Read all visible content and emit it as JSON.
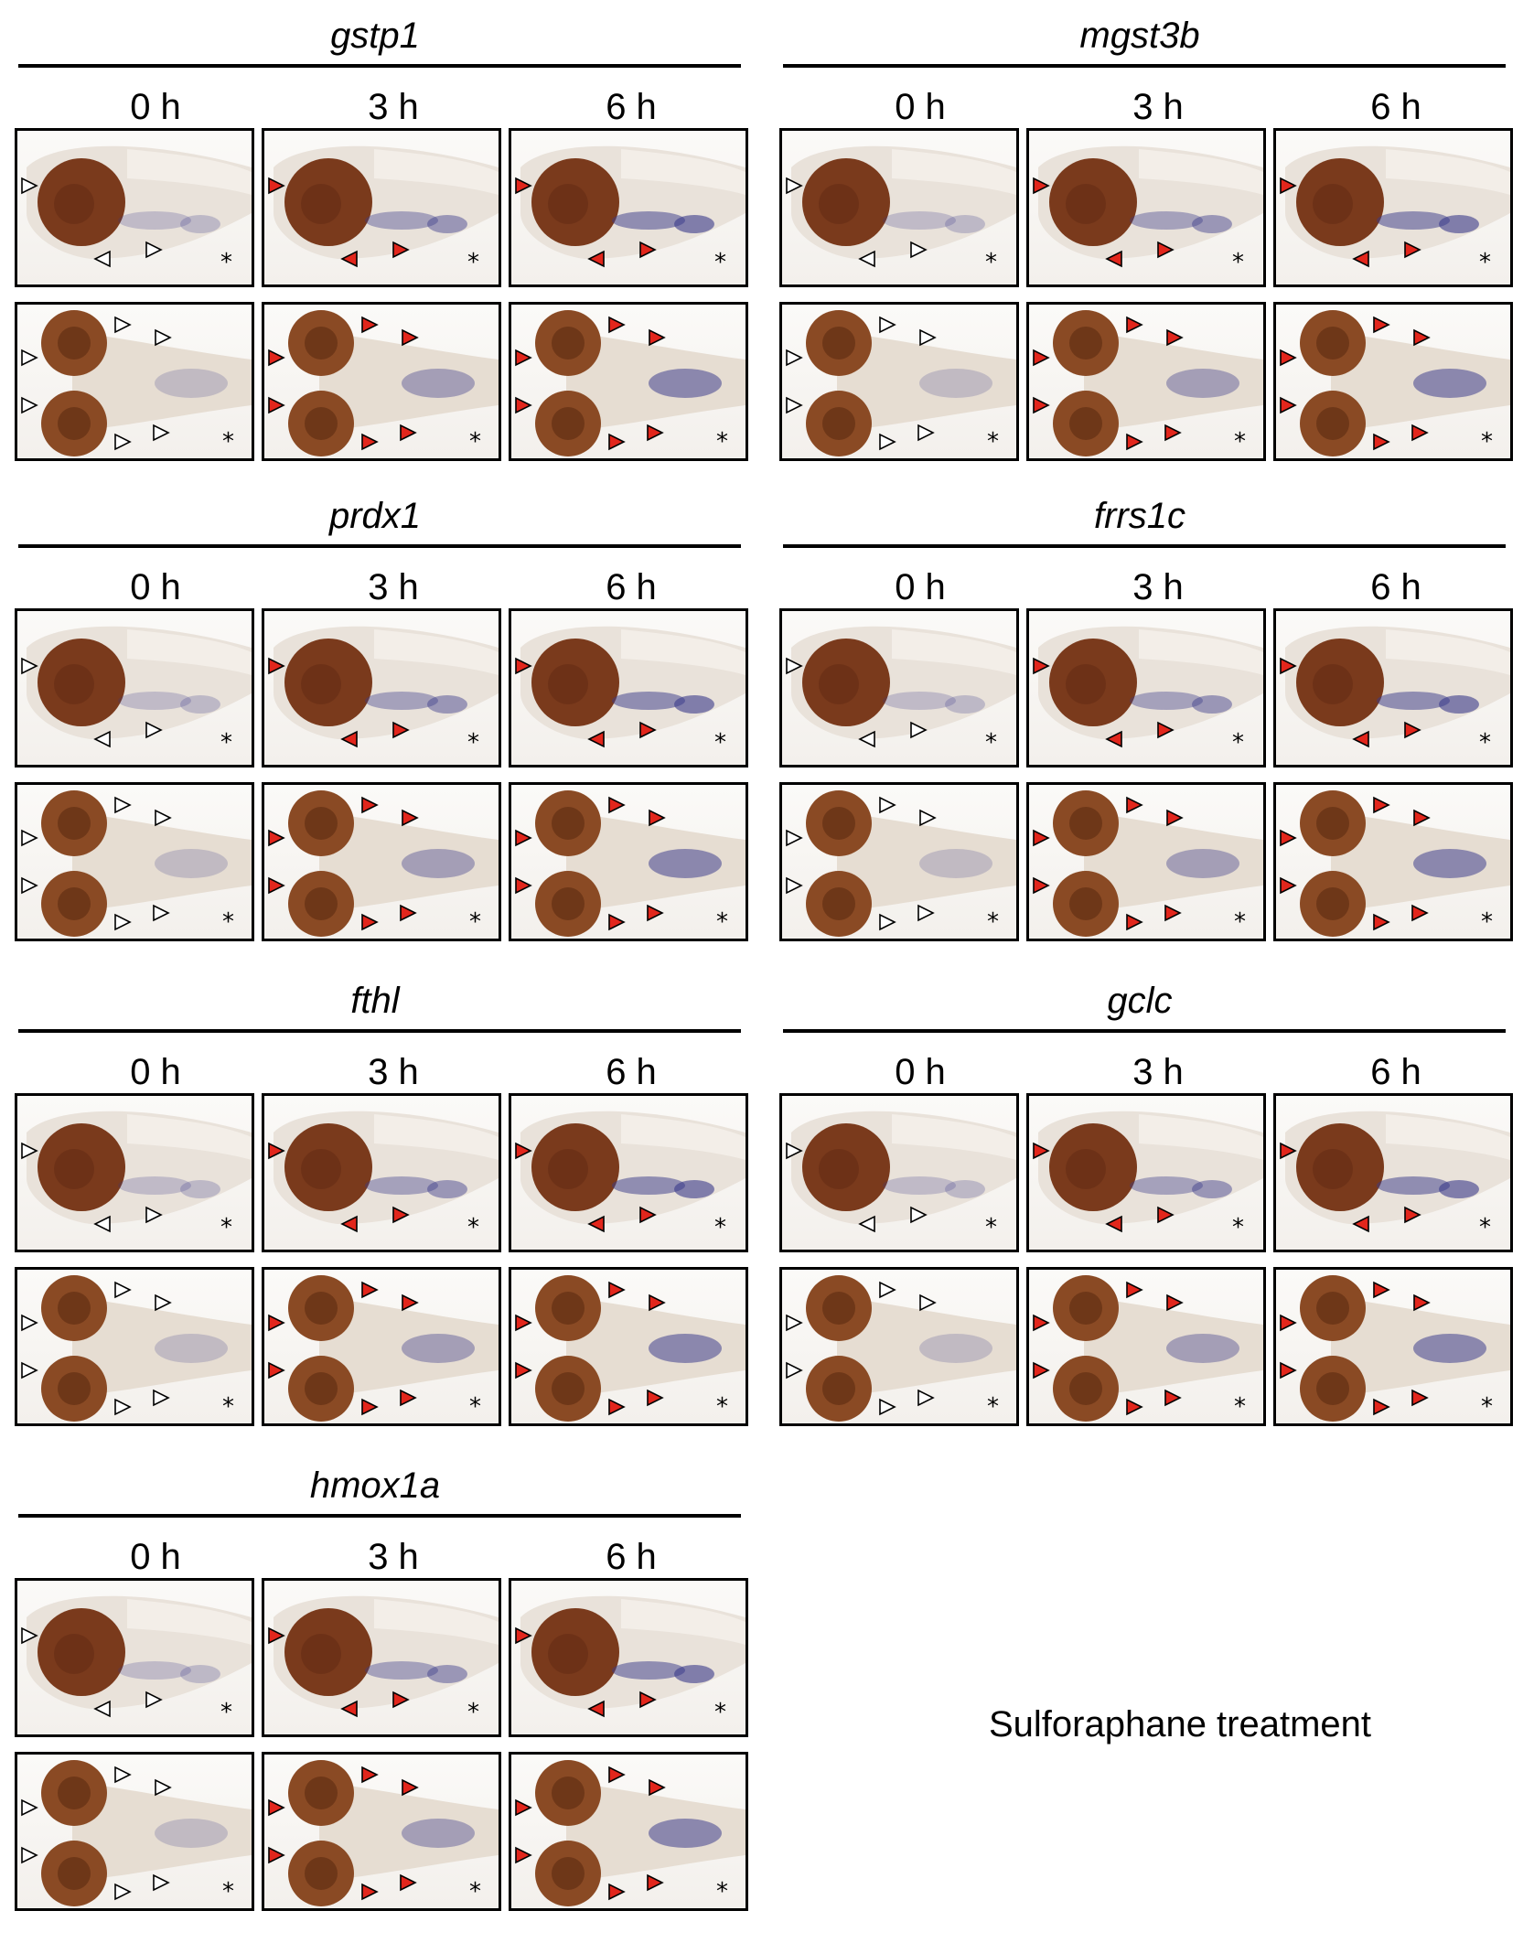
{
  "figure": {
    "genes": [
      {
        "name": "gstp1",
        "timepoints": [
          "0 h",
          "3 h",
          "6 h"
        ]
      },
      {
        "name": "mgst3b",
        "timepoints": [
          "0 h",
          "3 h",
          "6 h"
        ]
      },
      {
        "name": "prdx1",
        "timepoints": [
          "0 h",
          "3 h",
          "6 h"
        ]
      },
      {
        "name": "frrs1c",
        "timepoints": [
          "0 h",
          "3 h",
          "6 h"
        ]
      },
      {
        "name": "fthl",
        "timepoints": [
          "0 h",
          "3 h",
          "6 h"
        ]
      },
      {
        "name": "gclc",
        "timepoints": [
          "0 h",
          "3 h",
          "6 h"
        ]
      },
      {
        "name": "hmox1a",
        "timepoints": [
          "0 h",
          "3 h",
          "6 h"
        ]
      }
    ],
    "caption": "Sulforaphane treatment",
    "colors": {
      "induced_arrowhead": "#e2261c",
      "uninduced_arrowhead": "#ffffff",
      "stain": "#3a3a8a",
      "eye": "#7a3a1c"
    }
  }
}
